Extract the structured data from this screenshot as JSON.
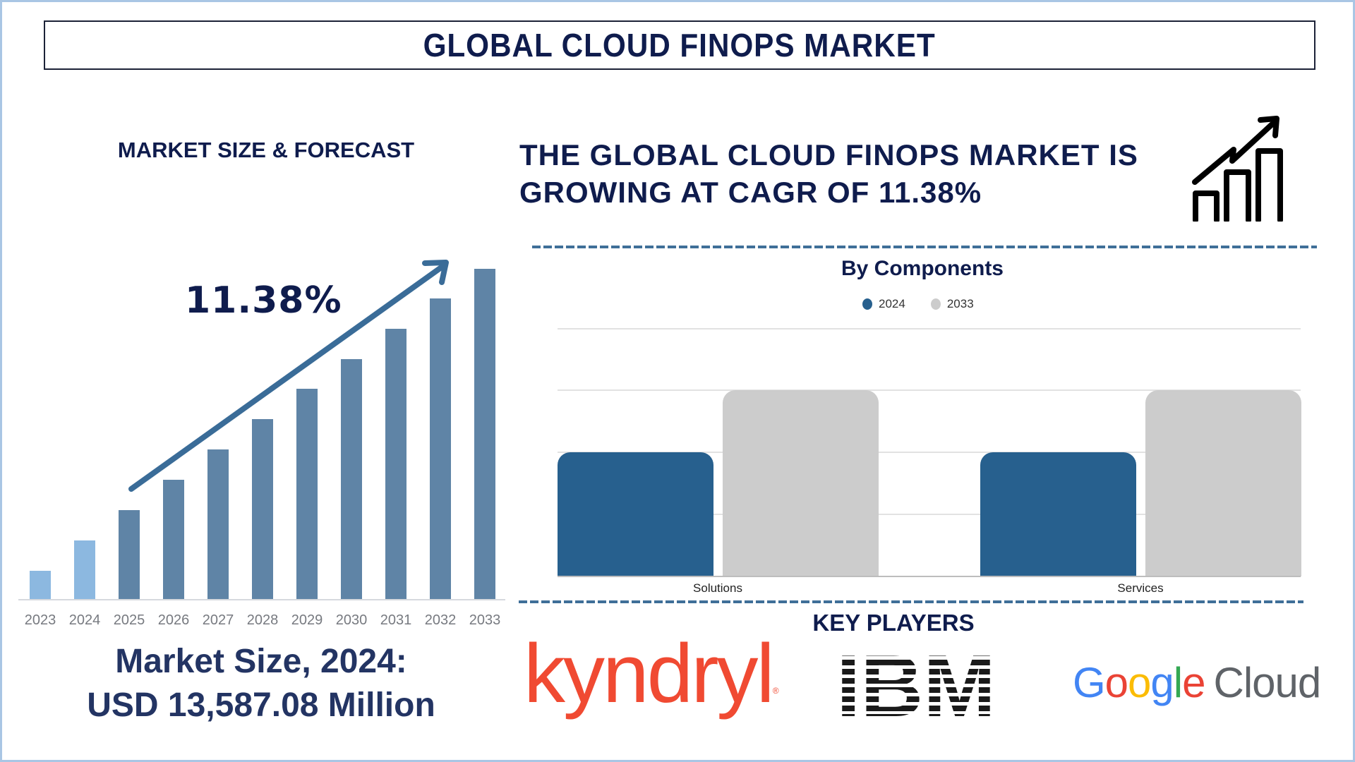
{
  "header": {
    "title": "GLOBAL CLOUD FINOPS MARKET"
  },
  "left_panel": {
    "heading": "MARKET SIZE & FORECAST",
    "cagr_label": "11.38%",
    "market_size_line1": "Market Size, 2024:",
    "market_size_line2": "USD 13,587.08 Million"
  },
  "right_panel": {
    "headline_line1": "THE GLOBAL CLOUD FINOPS MARKET IS",
    "headline_line2": "GROWING AT CAGR OF 11.38%",
    "growth_icon": "bar-chart-growth-icon",
    "components_title": "By Components",
    "legend": [
      {
        "label": "2024",
        "color": "#27608e"
      },
      {
        "label": "2033",
        "color": "#cccccc"
      }
    ],
    "categories": [
      "Solutions",
      "Services"
    ],
    "key_players_title": "KEY PLAYERS",
    "key_players": [
      "kyndryl",
      "IBM",
      "Google Cloud"
    ],
    "kyndryl_reg": "®"
  },
  "colors": {
    "navy": "#0f1c4d",
    "bar_historic": "#8cb8e0",
    "bar_forecast": "#5f84a6",
    "arrow": "#3a6c98",
    "comp_2024": "#27608e",
    "comp_2033": "#cccccc",
    "dash": "#3f6f98",
    "kyndryl": "#f04a32"
  },
  "chart_data": [
    {
      "type": "bar",
      "title": "MARKET SIZE & FORECAST",
      "categories": [
        "2023",
        "2024",
        "2025",
        "2026",
        "2027",
        "2028",
        "2029",
        "2030",
        "2031",
        "2032",
        "2033"
      ],
      "values": [
        41,
        84,
        127,
        170,
        213,
        256,
        299,
        341,
        384,
        427,
        469
      ],
      "value_units": "relative bar height (px, no axis shown)",
      "historic_years": [
        "2023",
        "2024"
      ],
      "forecast_years": [
        "2025",
        "2026",
        "2027",
        "2028",
        "2029",
        "2030",
        "2031",
        "2032",
        "2033"
      ],
      "annotation": "11.38%",
      "xlabel": "",
      "ylabel": "",
      "grid": false,
      "legend": null
    },
    {
      "type": "bar",
      "title": "By Components",
      "categories": [
        "Solutions",
        "Services"
      ],
      "series": [
        {
          "name": "2024",
          "values": [
            2,
            2
          ]
        },
        {
          "name": "2033",
          "values": [
            3,
            3
          ]
        }
      ],
      "ylim": [
        0,
        4
      ],
      "value_units": "gridline units (no axis labels shown)",
      "grid": true,
      "legend_position": "top",
      "xlabel": "",
      "ylabel": ""
    }
  ]
}
